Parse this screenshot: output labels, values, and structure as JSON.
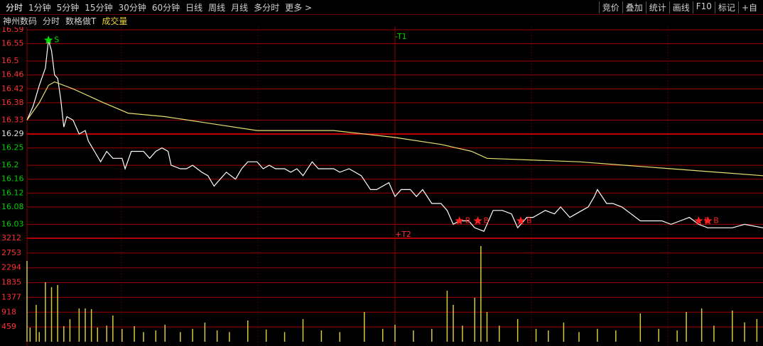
{
  "toolbar": {
    "left": [
      "分时",
      "1分钟",
      "5分钟",
      "15分钟",
      "30分钟",
      "60分钟",
      "日线",
      "周线",
      "月线",
      "多分时",
      "更多 >"
    ],
    "right": [
      "竞价",
      "叠加",
      "统计",
      "画线",
      "F10",
      "标记",
      "+自"
    ]
  },
  "header": {
    "stock": "神州数码",
    "items": [
      "分时",
      "数格做T",
      "成交量"
    ]
  },
  "chart_data": [
    {
      "type": "line",
      "xlim": [
        0,
        240
      ],
      "ylim": [
        15.99,
        16.59
      ],
      "yticks": [
        16.59,
        16.55,
        16.5,
        16.46,
        16.42,
        16.38,
        16.33,
        16.29,
        16.25,
        16.2,
        16.16,
        16.12,
        16.08,
        16.03
      ],
      "base": 16.29,
      "up_color": "#ff3232",
      "down_color": "#00d000",
      "base_color": "#e0e0e0",
      "grid": true,
      "series": [
        {
          "color": "#ffffff",
          "x": [
            0,
            2,
            4,
            6,
            7,
            8,
            9,
            10,
            11,
            12,
            13,
            15,
            17,
            19,
            20,
            22,
            24,
            26,
            28,
            31,
            32,
            34,
            38,
            40,
            42,
            44,
            46,
            47,
            50,
            52,
            54,
            57,
            59,
            61,
            63,
            65,
            68,
            70,
            72,
            75,
            77,
            79,
            81,
            84,
            86,
            88,
            90,
            93,
            95,
            98,
            100,
            102,
            105,
            107,
            109,
            112,
            114,
            116,
            118,
            120,
            122,
            125,
            127,
            129,
            132,
            135,
            137,
            139,
            141,
            144,
            146,
            149,
            152,
            155,
            158,
            160,
            163,
            165,
            169,
            172,
            174,
            177,
            179,
            183,
            185,
            186,
            189,
            191,
            194,
            197,
            200,
            204,
            207,
            210,
            213,
            216,
            219,
            222,
            225,
            230,
            234,
            240
          ],
          "values": [
            16.33,
            16.37,
            16.43,
            16.48,
            16.56,
            16.53,
            16.46,
            16.45,
            16.39,
            16.31,
            16.34,
            16.33,
            16.29,
            16.3,
            16.27,
            16.24,
            16.21,
            16.24,
            16.22,
            16.22,
            16.19,
            16.24,
            16.24,
            16.22,
            16.24,
            16.25,
            16.24,
            16.2,
            16.19,
            16.19,
            16.2,
            16.18,
            16.17,
            16.14,
            16.16,
            16.18,
            16.16,
            16.19,
            16.21,
            16.21,
            16.19,
            16.2,
            16.19,
            16.19,
            16.18,
            16.19,
            16.17,
            16.21,
            16.19,
            16.19,
            16.19,
            16.18,
            16.19,
            16.18,
            16.17,
            16.13,
            16.13,
            16.14,
            16.15,
            16.11,
            16.13,
            16.13,
            16.11,
            16.13,
            16.09,
            16.09,
            16.07,
            16.03,
            16.04,
            16.04,
            16.02,
            16.01,
            16.07,
            16.07,
            16.06,
            16.02,
            16.05,
            16.05,
            16.07,
            16.06,
            16.08,
            16.05,
            16.06,
            16.08,
            16.11,
            16.13,
            16.09,
            16.09,
            16.08,
            16.06,
            16.04,
            16.04,
            16.04,
            16.03,
            16.04,
            16.05,
            16.03,
            16.02,
            16.02,
            16.02,
            16.03,
            16.02
          ]
        },
        {
          "color": "#e8e070",
          "x": [
            0,
            4,
            7,
            9,
            15,
            25,
            33,
            45,
            60,
            75,
            100,
            120,
            135,
            145,
            150,
            180,
            210,
            240
          ],
          "values": [
            16.33,
            16.38,
            16.43,
            16.44,
            16.42,
            16.38,
            16.35,
            16.34,
            16.32,
            16.3,
            16.3,
            16.28,
            16.26,
            16.24,
            16.22,
            16.21,
            16.19,
            16.17
          ]
        }
      ],
      "annotations": [
        {
          "x": 7,
          "y": 16.56,
          "label": "S",
          "color": "#00e000"
        },
        {
          "x": 141,
          "y": 16.04,
          "label": "B",
          "color": "#ff2020"
        },
        {
          "x": 147,
          "y": 16.04,
          "label": "B",
          "color": "#ff2020"
        },
        {
          "x": 161,
          "y": 16.04,
          "label": "B",
          "color": "#ff2020"
        },
        {
          "x": 219,
          "y": 16.04,
          "label": "B",
          "color": "#ff2020"
        },
        {
          "x": 222,
          "y": 16.04,
          "label": "B",
          "color": "#ff2020"
        }
      ],
      "markers": [
        {
          "x": 120,
          "y": 16.57,
          "label": "-T1",
          "color": "#00d000"
        },
        {
          "x": 120,
          "y": 16.0,
          "label": "+T2",
          "color": "#ff3232"
        }
      ]
    },
    {
      "type": "bar",
      "xlim": [
        0,
        240
      ],
      "ylim": [
        0,
        3212
      ],
      "yticks": [
        3212,
        2753,
        2294,
        1835,
        1377,
        918,
        459
      ],
      "color": "#d8c840",
      "label_color": "#ff3232",
      "x": [
        0,
        1,
        3,
        4,
        6,
        8,
        10,
        12,
        14,
        17,
        19,
        21,
        23,
        26,
        28,
        31,
        35,
        38,
        42,
        45,
        50,
        54,
        58,
        62,
        66,
        72,
        78,
        84,
        90,
        96,
        102,
        110,
        116,
        120,
        126,
        132,
        137,
        139,
        142,
        146,
        148,
        150,
        154,
        160,
        166,
        170,
        175,
        180,
        186,
        192,
        200,
        206,
        212,
        215,
        220,
        224,
        230,
        234,
        238
      ],
      "values": [
        2508,
        440,
        1144,
        300,
        1848,
        1694,
        1760,
        484,
        700,
        1034,
        1034,
        1012,
        440,
        500,
        814,
        400,
        484,
        300,
        350,
        528,
        300,
        400,
        594,
        350,
        300,
        660,
        380,
        300,
        704,
        350,
        300,
        924,
        400,
        528,
        350,
        400,
        1584,
        1144,
        500,
        1364,
        2970,
        924,
        500,
        704,
        400,
        350,
        594,
        300,
        400,
        350,
        880,
        400,
        350,
        924,
        1034,
        500,
        968,
        600,
        704
      ]
    }
  ]
}
